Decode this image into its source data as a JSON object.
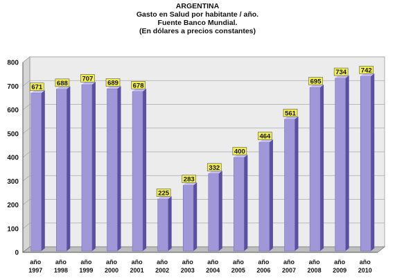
{
  "chart_data": {
    "type": "bar",
    "title": "ARGENTINA",
    "subtitle_lines": [
      "Gasto en Salud por habitante /  año.",
      "Fuente Banco Mundial.",
      "(En dólares a precios constantes)"
    ],
    "categories": [
      "año 1997",
      "año 1998",
      "año 1999",
      "año 2000",
      "año 2001",
      "año 2002",
      "año 2003",
      "año 2004",
      "año 2005",
      "año 2006",
      "año 2007",
      "año 2008",
      "año 2009",
      "año 2010"
    ],
    "values": [
      671,
      688,
      707,
      689,
      678,
      225,
      283,
      332,
      400,
      464,
      561,
      695,
      734,
      742
    ],
    "data_labels": [
      "671",
      "688",
      "707",
      "689",
      "678",
      "225",
      "283",
      "332",
      "400",
      "464",
      "561",
      "695",
      "734",
      "742"
    ],
    "yticks": [
      0,
      100,
      200,
      300,
      400,
      500,
      600,
      700,
      800
    ],
    "ylim": [
      0,
      800
    ],
    "grid": true,
    "bar_color": "#9f97d8",
    "bar_side_color": "#5b4fa0",
    "bar_top_color": "#c3bdf0",
    "label_bg_color": "#f2ef4a",
    "wall_color": "#ececec",
    "floor_color": "#bdbdbd"
  }
}
